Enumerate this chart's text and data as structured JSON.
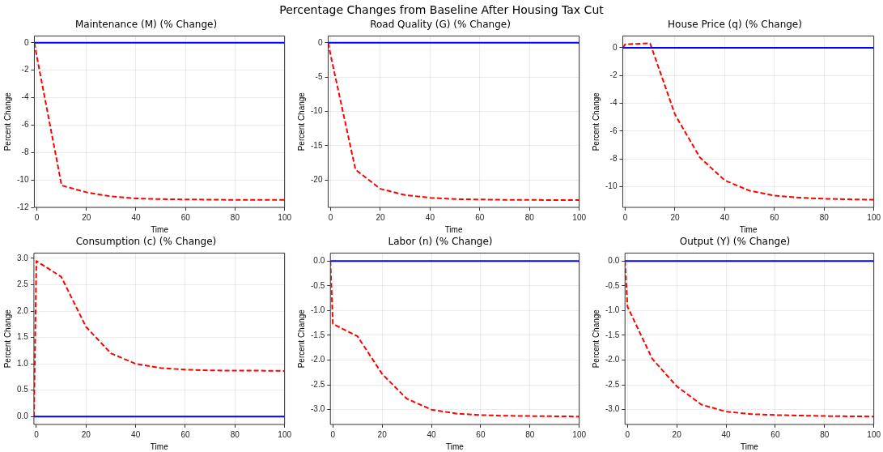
{
  "chart_data": [
    {
      "type": "line",
      "title": "Maintenance (M) (% Change)",
      "xlabel": "Time",
      "ylabel": "Percent Change",
      "annotations": [
        "Percentage Changes from Baseline After Housing Tax Cut"
      ],
      "x": [
        -1,
        0,
        10,
        20,
        30,
        40,
        50,
        60,
        70,
        80,
        90,
        100
      ],
      "series": [
        {
          "color": "#ff0000",
          "values": [
            0,
            -1.0,
            -10.4,
            -10.9,
            -11.2,
            -11.35,
            -11.4,
            -11.42,
            -11.44,
            -11.45,
            -11.45,
            -11.45
          ]
        }
      ],
      "xlim": [
        -1,
        100
      ],
      "xticks": [
        0,
        20,
        40,
        60,
        80,
        100
      ],
      "ylim": [
        -12,
        0.5
      ],
      "yticks": [
        -12,
        -10,
        -8,
        -6,
        -4,
        -2,
        0
      ],
      "ref_lines": [
        {
          "axis": "y",
          "value": 0,
          "color": "#0000ff"
        }
      ],
      "grid": true,
      "line_style": "dashed",
      "marker": "none"
    },
    {
      "type": "line",
      "title": "Road Quality (G) (% Change)",
      "xlabel": "Time",
      "ylabel": "Percent Change",
      "x": [
        -1,
        0,
        10,
        20,
        30,
        40,
        50,
        60,
        70,
        80,
        90,
        100
      ],
      "series": [
        {
          "color": "#ff0000",
          "values": [
            0,
            -1.8,
            -18.5,
            -21.3,
            -22.2,
            -22.6,
            -22.8,
            -22.85,
            -22.9,
            -22.9,
            -22.95,
            -22.95
          ]
        }
      ],
      "xlim": [
        -1,
        100
      ],
      "xticks": [
        0,
        20,
        40,
        60,
        80,
        100
      ],
      "ylim": [
        -24,
        1
      ],
      "yticks": [
        -20,
        -15,
        -10,
        -5,
        0
      ],
      "ref_lines": [
        {
          "axis": "y",
          "value": 0,
          "color": "#0000ff"
        }
      ],
      "grid": true,
      "line_style": "dashed",
      "marker": "none"
    },
    {
      "type": "line",
      "title": "House Price (q) (% Change)",
      "xlabel": "Time",
      "ylabel": "Percent Change",
      "x": [
        -1,
        0,
        10,
        20,
        30,
        40,
        50,
        60,
        70,
        80,
        90,
        100
      ],
      "series": [
        {
          "color": "#ff0000",
          "values": [
            0,
            0.25,
            0.32,
            -4.8,
            -7.9,
            -9.55,
            -10.3,
            -10.65,
            -10.8,
            -10.88,
            -10.92,
            -10.95
          ]
        }
      ],
      "xlim": [
        -1,
        100
      ],
      "xticks": [
        0,
        20,
        40,
        60,
        80,
        100
      ],
      "ylim": [
        -11.5,
        0.85
      ],
      "yticks": [
        -10,
        -8,
        -6,
        -4,
        -2,
        0
      ],
      "ref_lines": [
        {
          "axis": "y",
          "value": 0,
          "color": "#0000ff"
        }
      ],
      "grid": true,
      "line_style": "dashed",
      "marker": "none"
    },
    {
      "type": "line",
      "title": "Consumption (c) (% Change)",
      "xlabel": "Time",
      "ylabel": "Percent Change",
      "x": [
        -1,
        0,
        10,
        20,
        30,
        40,
        50,
        60,
        70,
        80,
        90,
        100
      ],
      "series": [
        {
          "color": "#ff0000",
          "values": [
            0,
            2.95,
            2.65,
            1.7,
            1.2,
            1.0,
            0.92,
            0.89,
            0.875,
            0.87,
            0.87,
            0.865
          ]
        }
      ],
      "xlim": [
        -1,
        100
      ],
      "xticks": [
        0,
        20,
        40,
        60,
        80,
        100
      ],
      "ylim": [
        -0.15,
        3.1
      ],
      "yticks": [
        {
          "value": 0,
          "label": "0.0"
        },
        0.5,
        {
          "value": 1,
          "label": "1.0"
        },
        1.5,
        {
          "value": 2,
          "label": "2.0"
        },
        2.5,
        {
          "value": 3,
          "label": "3.0"
        }
      ],
      "ref_lines": [
        {
          "axis": "y",
          "value": 0,
          "color": "#0000ff"
        }
      ],
      "grid": true,
      "line_style": "dashed",
      "marker": "none"
    },
    {
      "type": "line",
      "title": "Labor (n) (% Change)",
      "xlabel": "Time",
      "ylabel": "Percent Change",
      "x": [
        -1,
        0,
        10,
        20,
        30,
        40,
        50,
        60,
        70,
        80,
        90,
        100
      ],
      "series": [
        {
          "color": "#ff0000",
          "values": [
            0,
            -1.27,
            -1.52,
            -2.28,
            -2.78,
            -3.0,
            -3.08,
            -3.11,
            -3.125,
            -3.13,
            -3.135,
            -3.14
          ]
        }
      ],
      "xlim": [
        -1,
        100
      ],
      "xticks": [
        0,
        20,
        40,
        60,
        80,
        100
      ],
      "ylim": [
        -3.3,
        0.16
      ],
      "yticks": [
        {
          "value": -3,
          "label": "-3.0"
        },
        -2.5,
        {
          "value": -2,
          "label": "-2.0"
        },
        -1.5,
        {
          "value": -1,
          "label": "-1.0"
        },
        -0.5,
        {
          "value": 0,
          "label": "0.0"
        }
      ],
      "ref_lines": [
        {
          "axis": "y",
          "value": 0,
          "color": "#0000ff"
        }
      ],
      "grid": true,
      "line_style": "dashed",
      "marker": "none"
    },
    {
      "type": "line",
      "title": "Output (Y) (% Change)",
      "xlabel": "Time",
      "ylabel": "Percent Change",
      "x": [
        -1,
        0,
        10,
        20,
        30,
        40,
        50,
        60,
        70,
        80,
        90,
        100
      ],
      "series": [
        {
          "color": "#ff0000",
          "values": [
            0,
            -0.92,
            -1.97,
            -2.53,
            -2.9,
            -3.04,
            -3.09,
            -3.11,
            -3.12,
            -3.13,
            -3.135,
            -3.14
          ]
        }
      ],
      "xlim": [
        -1,
        100
      ],
      "xticks": [
        0,
        20,
        40,
        60,
        80,
        100
      ],
      "ylim": [
        -3.3,
        0.16
      ],
      "yticks": [
        {
          "value": -3,
          "label": "-3.0"
        },
        -2.5,
        {
          "value": -2,
          "label": "-2.0"
        },
        -1.5,
        {
          "value": -1,
          "label": "-1.0"
        },
        -0.5,
        {
          "value": 0,
          "label": "0.0"
        }
      ],
      "ref_lines": [
        {
          "axis": "y",
          "value": 0,
          "color": "#0000ff"
        }
      ],
      "grid": true,
      "line_style": "dashed",
      "marker": "none"
    }
  ]
}
